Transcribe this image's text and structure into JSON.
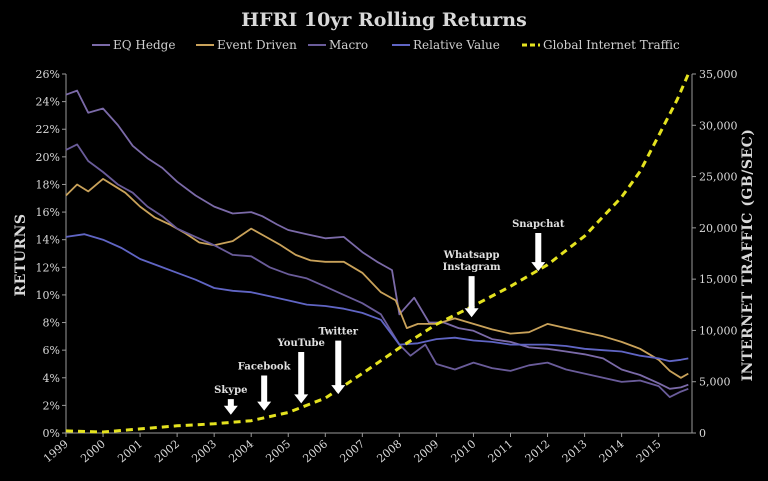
{
  "chart_data": {
    "type": "line",
    "title": "HFRI 10yr Rolling Returns",
    "ylabel": "RETURNS",
    "y2label": "INTERNET TRAFFIC (GB/SEC)",
    "xlabel": "",
    "xlim": [
      1999,
      2015.9
    ],
    "ylim": [
      0,
      26
    ],
    "y2lim": [
      0,
      35000
    ],
    "x_ticks": [
      "1999",
      "2000",
      "2001",
      "2002",
      "2003",
      "2004",
      "2005",
      "2006",
      "2007",
      "2008",
      "2009",
      "2010",
      "2011",
      "2012",
      "2013",
      "2014",
      "2015"
    ],
    "y_ticks": [
      "0%",
      "2%",
      "4%",
      "6%",
      "8%",
      "10%",
      "12%",
      "14%",
      "16%",
      "18%",
      "20%",
      "22%",
      "24%",
      "26%"
    ],
    "y2_ticks": [
      "0",
      "5,000",
      "10,000",
      "15,000",
      "20,000",
      "25,000",
      "30,000",
      "35,000"
    ],
    "legend_position": "top",
    "series": [
      {
        "name": "EQ Hedge",
        "axis": "left",
        "color": "#7b6aa8",
        "x": [
          1999,
          1999.3,
          1999.6,
          2000,
          2000.4,
          2000.8,
          2001.2,
          2001.6,
          2002,
          2002.5,
          2003,
          2003.5,
          2004,
          2004.3,
          2004.7,
          2005,
          2005.5,
          2006,
          2006.5,
          2007,
          2007.4,
          2007.8,
          2008,
          2008.4,
          2008.8,
          2009.2,
          2009.6,
          2010,
          2010.5,
          2011,
          2011.5,
          2012,
          2012.5,
          2013,
          2013.5,
          2014,
          2014.5,
          2015,
          2015.3,
          2015.6,
          2015.8
        ],
        "y": [
          24.5,
          24.8,
          23.2,
          23.5,
          22.3,
          20.8,
          19.9,
          19.2,
          18.2,
          17.2,
          16.4,
          15.9,
          16.0,
          15.7,
          15.1,
          14.7,
          14.4,
          14.1,
          14.2,
          13.1,
          12.4,
          11.8,
          8.6,
          9.8,
          8.0,
          8.0,
          7.6,
          7.4,
          6.8,
          6.6,
          6.2,
          6.1,
          5.9,
          5.7,
          5.4,
          4.6,
          4.2,
          3.6,
          3.2,
          3.3,
          3.5
        ]
      },
      {
        "name": "Event Driven",
        "axis": "left",
        "color": "#c9a25a",
        "x": [
          1999,
          1999.3,
          1999.6,
          2000,
          2000.3,
          2000.6,
          2001,
          2001.4,
          2001.8,
          2002.2,
          2002.6,
          2003,
          2003.5,
          2004,
          2004.4,
          2004.8,
          2005.2,
          2005.6,
          2006,
          2006.5,
          2007,
          2007.5,
          2007.9,
          2008.2,
          2008.5,
          2009,
          2009.5,
          2010,
          2010.5,
          2011,
          2011.5,
          2012,
          2012.5,
          2013,
          2013.5,
          2014,
          2014.5,
          2015,
          2015.3,
          2015.6,
          2015.8
        ],
        "y": [
          17.2,
          18.0,
          17.5,
          18.4,
          17.9,
          17.4,
          16.4,
          15.6,
          15.1,
          14.5,
          13.8,
          13.6,
          13.9,
          14.8,
          14.2,
          13.6,
          12.9,
          12.5,
          12.4,
          12.4,
          11.6,
          10.2,
          9.6,
          7.6,
          7.9,
          7.9,
          8.3,
          7.9,
          7.5,
          7.2,
          7.3,
          7.9,
          7.6,
          7.3,
          7.0,
          6.6,
          6.1,
          5.3,
          4.5,
          4.0,
          4.3
        ]
      },
      {
        "name": "Macro",
        "axis": "left",
        "color": "#6a5c9a",
        "x": [
          1999,
          1999.3,
          1999.6,
          2000,
          2000.4,
          2000.8,
          2001.2,
          2001.6,
          2002,
          2002.5,
          2003,
          2003.5,
          2004,
          2004.5,
          2005,
          2005.5,
          2006,
          2006.5,
          2007,
          2007.5,
          2008,
          2008.3,
          2008.7,
          2009,
          2009.5,
          2010,
          2010.5,
          2011,
          2011.5,
          2012,
          2012.5,
          2013,
          2013.5,
          2014,
          2014.5,
          2015,
          2015.3,
          2015.6,
          2015.8
        ],
        "y": [
          20.5,
          20.9,
          19.7,
          18.9,
          18.0,
          17.4,
          16.4,
          15.7,
          14.8,
          14.2,
          13.6,
          12.9,
          12.8,
          12.0,
          11.5,
          11.2,
          10.6,
          10.0,
          9.4,
          8.6,
          6.4,
          5.6,
          6.4,
          5.0,
          4.6,
          5.1,
          4.7,
          4.5,
          4.9,
          5.1,
          4.6,
          4.3,
          4.0,
          3.7,
          3.8,
          3.4,
          2.6,
          3.0,
          3.2
        ]
      },
      {
        "name": "Relative Value",
        "axis": "left",
        "color": "#6065c4",
        "x": [
          1999,
          1999.5,
          2000,
          2000.5,
          2001,
          2001.5,
          2002,
          2002.5,
          2003,
          2003.5,
          2004,
          2004.5,
          2005,
          2005.5,
          2006,
          2006.5,
          2007,
          2007.5,
          2008,
          2008.5,
          2009,
          2009.5,
          2010,
          2010.5,
          2011,
          2011.5,
          2012,
          2012.5,
          2013,
          2013.5,
          2014,
          2014.5,
          2015,
          2015.3,
          2015.6,
          2015.8
        ],
        "y": [
          14.2,
          14.4,
          14.0,
          13.4,
          12.6,
          12.1,
          11.6,
          11.1,
          10.5,
          10.3,
          10.2,
          9.9,
          9.6,
          9.3,
          9.2,
          9.0,
          8.7,
          8.2,
          6.4,
          6.5,
          6.8,
          6.9,
          6.7,
          6.6,
          6.4,
          6.4,
          6.4,
          6.3,
          6.1,
          6.0,
          5.9,
          5.6,
          5.4,
          5.2,
          5.3,
          5.4
        ]
      },
      {
        "name": "Global Internet Traffic",
        "axis": "right",
        "color": "#e4e21f",
        "dashed": true,
        "x": [
          1999,
          2000,
          2001,
          2002,
          2003,
          2004,
          2005,
          2006,
          2007,
          2008,
          2009,
          2010,
          2011,
          2012,
          2013,
          2014,
          2014.5,
          2015,
          2015.5,
          2015.8
        ],
        "y": [
          200,
          100,
          400,
          700,
          900,
          1200,
          2000,
          3400,
          5800,
          8300,
          10600,
          12400,
          14300,
          16400,
          19200,
          23000,
          25500,
          29000,
          32500,
          35000
        ]
      }
    ],
    "annotations": [
      {
        "label": "Skype",
        "x": 2003.45,
        "y2": 1200,
        "arrow_from_y2": 3300
      },
      {
        "label": "Facebook",
        "x": 2004.35,
        "y2": 1600,
        "arrow_from_y2": 5600
      },
      {
        "label": "YouTube",
        "x": 2005.35,
        "y2": 2300,
        "arrow_from_y2": 7900
      },
      {
        "label": "Twitter",
        "x": 2006.35,
        "y2": 3200,
        "arrow_from_y2": 9000
      },
      {
        "label": "Whatsapp",
        "x": 2009.95,
        "y2": 10700,
        "arrow_from_y2": 15300
      },
      {
        "label": "Instagram",
        "x": 2009.95,
        "y2": null,
        "arrow_from_y2": null
      },
      {
        "label": "Snapchat",
        "x": 2011.75,
        "y2": 15200,
        "arrow_from_y2": 19500
      }
    ]
  }
}
